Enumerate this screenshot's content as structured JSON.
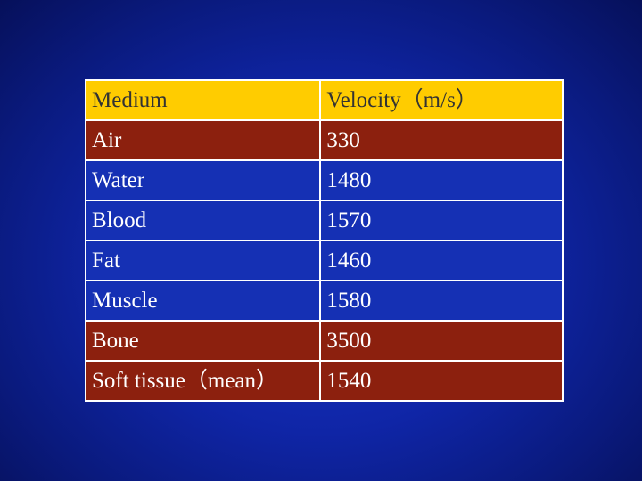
{
  "table": {
    "headers": {
      "medium": "Medium",
      "velocity": "Velocity（m/s）"
    },
    "rows": [
      {
        "medium": "Air",
        "velocity": "330"
      },
      {
        "medium": "Water",
        "velocity": "1480"
      },
      {
        "medium": "Blood",
        "velocity": "1570"
      },
      {
        "medium": "Fat",
        "velocity": "1460"
      },
      {
        "medium": "Muscle",
        "velocity": "1580"
      },
      {
        "medium": "Bone",
        "velocity": "3500"
      },
      {
        "medium": "Soft tissue（mean）",
        "velocity": "1540"
      }
    ]
  },
  "colors": {
    "background": "#0f25a6",
    "header_fill": "#ffcc00",
    "row_red": "#8c200e",
    "row_blue": "#1530b4",
    "border": "#ffffff"
  }
}
